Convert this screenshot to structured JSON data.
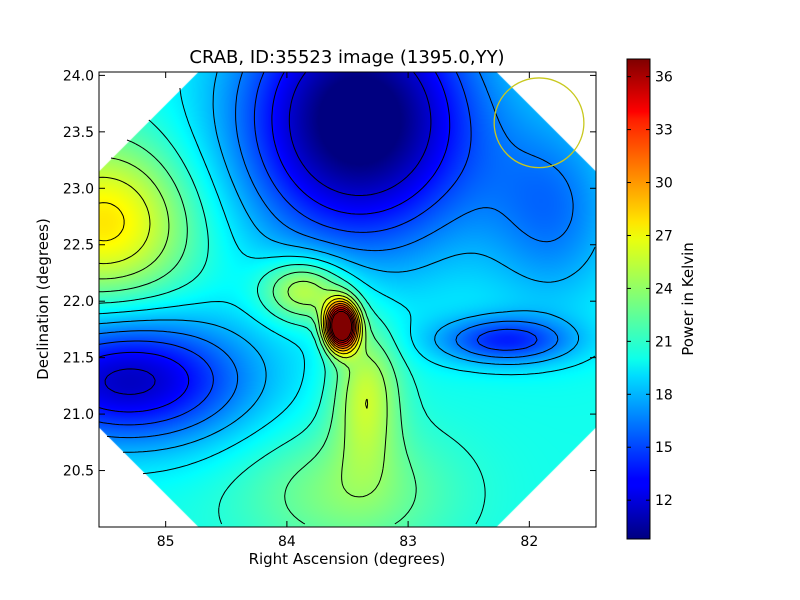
{
  "chart_data": {
    "type": "heatmap",
    "title": "CRAB, ID:35523 image (1395.0,YY)",
    "xlabel": "Right Ascension (degrees)",
    "ylabel": "Declination (degrees)",
    "xlim": [
      85.55,
      81.45
    ],
    "ylim": [
      20.0,
      24.03
    ],
    "x_ticks": [
      85,
      84,
      83,
      82
    ],
    "x_tick_labels": [
      "85",
      "84",
      "83",
      "82"
    ],
    "y_ticks": [
      20.5,
      21.0,
      21.5,
      22.0,
      22.5,
      23.0,
      23.5,
      24.0
    ],
    "y_tick_labels": [
      "20.5",
      "21.0",
      "21.5",
      "22.0",
      "22.5",
      "23.0",
      "23.5",
      "24.0"
    ],
    "colorbar": {
      "label": "Power in Kelvin",
      "range": [
        9.8,
        37
      ],
      "ticks": [
        12,
        15,
        18,
        21,
        24,
        27,
        30,
        33,
        36
      ],
      "tick_labels": [
        "12",
        "15",
        "18",
        "21",
        "24",
        "27",
        "30",
        "33",
        "36"
      ],
      "colormap": "jet"
    },
    "sources": [
      {
        "ra": 83.55,
        "dec": 21.78,
        "amplitude": 22.0,
        "sigma_ra": 0.09,
        "sigma_dec": 0.14
      },
      {
        "ra": 83.85,
        "dec": 22.1,
        "amplitude": 6.0,
        "sigma_ra": 0.25,
        "sigma_dec": 0.2
      },
      {
        "ra": 83.35,
        "dec": 21.2,
        "amplitude": 5.0,
        "sigma_ra": 0.2,
        "sigma_dec": 0.45
      },
      {
        "ra": 85.5,
        "dec": 22.7,
        "amplitude": 7.0,
        "sigma_ra": 0.5,
        "sigma_dec": 0.5
      },
      {
        "ra": 83.4,
        "dec": 23.6,
        "amplitude": -12.0,
        "sigma_ra": 0.7,
        "sigma_dec": 0.8
      },
      {
        "ra": 85.3,
        "dec": 21.3,
        "amplitude": -9.0,
        "sigma_ra": 0.7,
        "sigma_dec": 0.4
      },
      {
        "ra": 82.2,
        "dec": 21.65,
        "amplitude": -6.0,
        "sigma_ra": 0.4,
        "sigma_dec": 0.15
      },
      {
        "ra": 81.8,
        "dec": 22.8,
        "amplitude": -4.0,
        "sigma_ra": 0.4,
        "sigma_dec": 0.6
      },
      {
        "ra": 83.5,
        "dec": 20.3,
        "amplitude": 3.0,
        "sigma_ra": 0.6,
        "sigma_dec": 0.4
      }
    ],
    "base_level": 20.5,
    "contour_levels": [
      12,
      13.5,
      15,
      16.5,
      18,
      19.5,
      21,
      22.5,
      24,
      25.5,
      27,
      28.5,
      30,
      31.5,
      33,
      34.5,
      36
    ],
    "beam_marker": {
      "ra": 81.92,
      "dec": 23.58,
      "radius_deg": 0.37,
      "color": "#c8c81e"
    },
    "footprint": "octagon"
  }
}
